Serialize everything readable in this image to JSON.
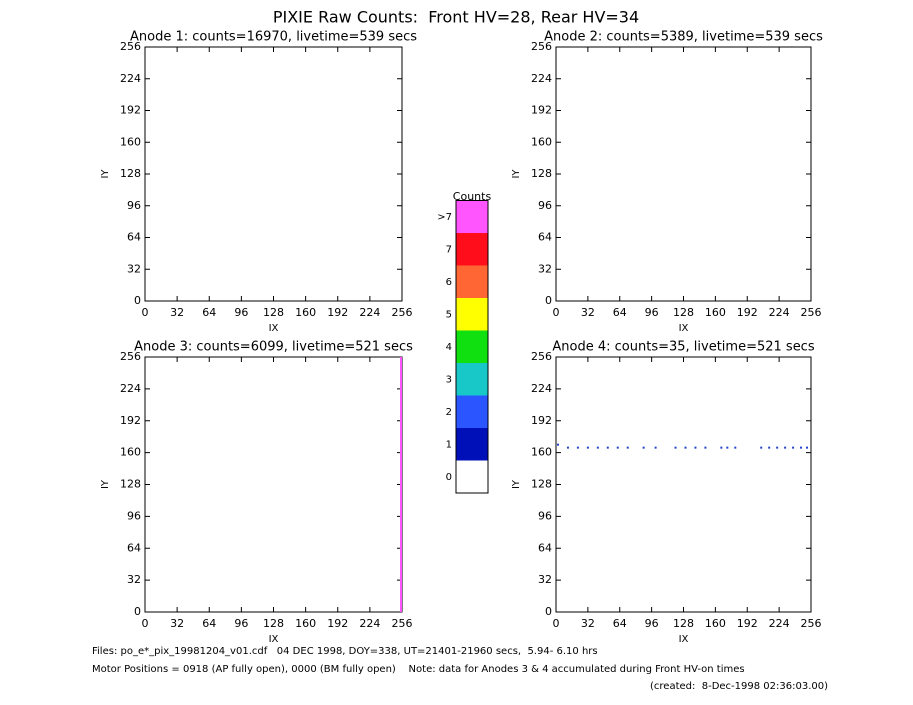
{
  "title": "PIXIE Raw Counts:  Front HV=28, Rear HV=34",
  "chart_data": [
    {
      "type": "scatter",
      "title": "Anode 1: counts=16970, livetime=539 secs",
      "x_label": "IX",
      "y_label": "IY",
      "xlim": [
        0,
        256
      ],
      "ylim": [
        0,
        256
      ],
      "xticks": [
        0,
        32,
        64,
        96,
        128,
        160,
        192,
        224,
        256
      ],
      "yticks": [
        0,
        32,
        64,
        96,
        128,
        160,
        192,
        224,
        256
      ],
      "series": []
    },
    {
      "type": "scatter",
      "title": "Anode 2: counts=5389, livetime=539 secs",
      "x_label": "IX",
      "y_label": "IY",
      "xlim": [
        0,
        256
      ],
      "ylim": [
        0,
        256
      ],
      "xticks": [
        0,
        32,
        64,
        96,
        128,
        160,
        192,
        224,
        256
      ],
      "yticks": [
        0,
        32,
        64,
        96,
        128,
        160,
        192,
        224,
        256
      ],
      "series": []
    },
    {
      "type": "scatter",
      "title": "Anode 3: counts=6099, livetime=521 secs",
      "x_label": "IX",
      "y_label": "IY",
      "xlim": [
        0,
        256
      ],
      "ylim": [
        0,
        256
      ],
      "xticks": [
        0,
        32,
        64,
        96,
        128,
        160,
        192,
        224,
        256
      ],
      "yticks": [
        0,
        32,
        64,
        96,
        128,
        160,
        192,
        224,
        256
      ],
      "series": [
        {
          "kind": "line",
          "color": "#ff55ff",
          "x": [
            255,
            255
          ],
          "y": [
            0,
            256
          ]
        }
      ]
    },
    {
      "type": "scatter",
      "title": "Anode 4: counts=35, livetime=521 secs",
      "x_label": "IX",
      "y_label": "IY",
      "xlim": [
        0,
        256
      ],
      "ylim": [
        0,
        256
      ],
      "xticks": [
        0,
        32,
        64,
        96,
        128,
        160,
        192,
        224,
        256
      ],
      "yticks": [
        0,
        32,
        64,
        96,
        128,
        160,
        192,
        224,
        256
      ],
      "series": [
        {
          "kind": "points",
          "color": "#2244cc",
          "x": [
            2,
            12,
            22,
            32,
            42,
            52,
            62,
            72,
            88,
            100,
            120,
            130,
            140,
            150,
            166,
            172,
            180,
            206,
            214,
            222,
            230,
            238,
            246,
            252
          ],
          "y": [
            168,
            165,
            165,
            165,
            165,
            165,
            165,
            165,
            165,
            165,
            165,
            165,
            165,
            165,
            165,
            165,
            165,
            165,
            165,
            165,
            165,
            165,
            165,
            165
          ]
        }
      ]
    }
  ],
  "colorbar": {
    "title": "Counts",
    "levels": [
      "0",
      "1",
      "2",
      "3",
      "4",
      "5",
      "6",
      "7",
      ">7"
    ],
    "colors": [
      "#ffffff",
      "#0010b8",
      "#2a55ff",
      "#18c8c8",
      "#10e010",
      "#ffff00",
      "#ff6633",
      "#ff0d1a",
      "#ff55ff"
    ]
  },
  "footer": {
    "files": "Files: po_e*_pix_19981204_v01.cdf   04 DEC 1998, DOY=338, UT=21401-21960 secs,  5.94- 6.10 hrs",
    "motor": "Motor Positions = 0918 (AP fully open), 0000 (BM fully open)    Note: data for Anodes 3 & 4 accumulated during Front HV-on times",
    "created": "(created:  8-Dec-1998 02:36:03.00)"
  }
}
